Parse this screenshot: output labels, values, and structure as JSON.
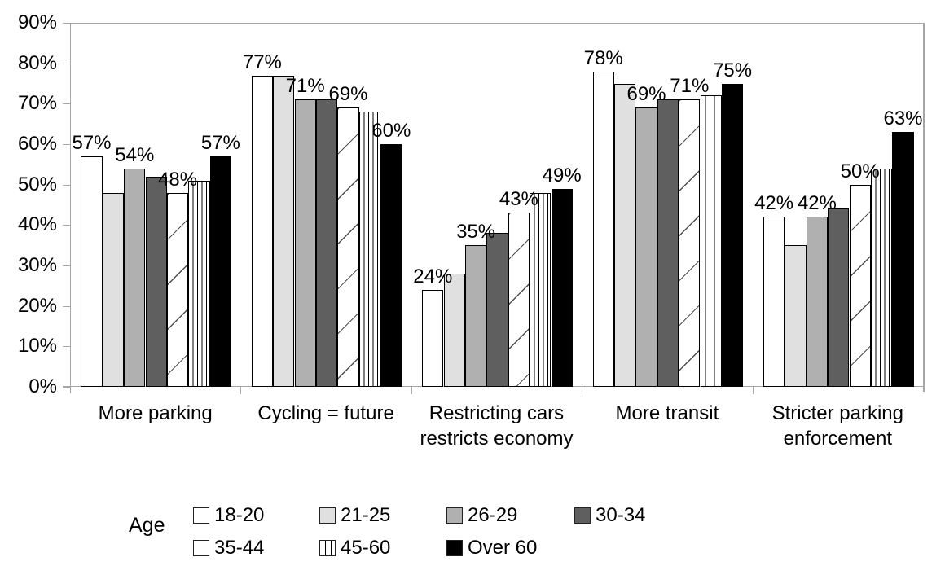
{
  "chart_data": {
    "type": "bar",
    "title": "",
    "xlabel": "",
    "ylabel": "",
    "ylim": [
      0,
      90
    ],
    "grid": false,
    "legend_position": "bottom",
    "legend_title": "Age",
    "data_label_suffix": "%",
    "yticks": [
      "0%",
      "10%",
      "20%",
      "30%",
      "40%",
      "50%",
      "60%",
      "70%",
      "80%",
      "90%"
    ],
    "categories": [
      "More parking",
      "Cycling = future",
      "Restricting cars restricts economy",
      "More transit",
      "Stricter parking enforcement"
    ],
    "category_label_lines": [
      [
        "More parking"
      ],
      [
        "Cycling = future"
      ],
      [
        "Restricting cars",
        "restricts economy"
      ],
      [
        "More transit"
      ],
      [
        "Stricter parking",
        "enforcement"
      ]
    ],
    "series": [
      {
        "name": "18-20",
        "pattern": "solid",
        "fill": "#ffffff",
        "labeled": true,
        "values": [
          57,
          77,
          24,
          78,
          42
        ]
      },
      {
        "name": "21-25",
        "pattern": "solid",
        "fill": "#e0e0e0",
        "labeled": false,
        "values": [
          48,
          77,
          28,
          75,
          35
        ]
      },
      {
        "name": "26-29",
        "pattern": "solid",
        "fill": "#b0b0b0",
        "labeled": true,
        "values": [
          54,
          71,
          35,
          69,
          42
        ]
      },
      {
        "name": "30-34",
        "pattern": "solid",
        "fill": "#5f5f5f",
        "labeled": false,
        "values": [
          52,
          71,
          38,
          71,
          44
        ]
      },
      {
        "name": "35-44",
        "pattern": "diagonal-hatch",
        "fill": "#ffffff",
        "labeled": true,
        "values": [
          48,
          69,
          43,
          71,
          50
        ]
      },
      {
        "name": "45-60",
        "pattern": "vertical-stripes",
        "fill": "#ffffff",
        "labeled": false,
        "values": [
          51,
          68,
          48,
          72,
          54
        ]
      },
      {
        "name": "Over 60",
        "pattern": "solid",
        "fill": "#000000",
        "labeled": true,
        "values": [
          57,
          60,
          49,
          75,
          63
        ]
      }
    ],
    "legend_rows": [
      [
        "18-20",
        "21-25",
        "26-29",
        "30-34"
      ],
      [
        "35-44",
        "45-60",
        "Over 60"
      ]
    ]
  },
  "colors": {
    "background": "#ffffff",
    "axis": "#a6a6a6",
    "plot_border": "#a6a6a6",
    "bar_border": "#000000",
    "text": "#000000"
  }
}
